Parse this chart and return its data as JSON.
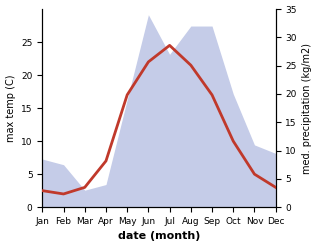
{
  "months": [
    "Jan",
    "Feb",
    "Mar",
    "Apr",
    "May",
    "Jun",
    "Jul",
    "Aug",
    "Sep",
    "Oct",
    "Nov",
    "Dec"
  ],
  "temperature": [
    2.5,
    2.0,
    3.0,
    7.0,
    17.0,
    22.0,
    24.5,
    21.5,
    17.0,
    10.0,
    5.0,
    3.0
  ],
  "precipitation": [
    8.5,
    7.5,
    3.0,
    4.0,
    19.0,
    34.0,
    27.0,
    32.0,
    32.0,
    20.0,
    11.0,
    9.5
  ],
  "temp_color": "#c0392b",
  "precip_fill_color": "#c5cce8",
  "precip_edge_color": "#c5cce8",
  "temp_ylim": [
    0,
    30
  ],
  "precip_ylim": [
    0,
    35
  ],
  "temp_yticks": [
    0,
    5,
    10,
    15,
    20,
    25
  ],
  "precip_yticks": [
    0,
    5,
    10,
    15,
    20,
    25,
    30,
    35
  ],
  "xlabel": "date (month)",
  "ylabel_left": "max temp (C)",
  "ylabel_right": "med. precipitation (kg/m2)",
  "bg_color": "#ffffff",
  "temp_linewidth": 2.0,
  "xlabel_fontsize": 8,
  "ylabel_fontsize": 7,
  "tick_fontsize": 6.5
}
